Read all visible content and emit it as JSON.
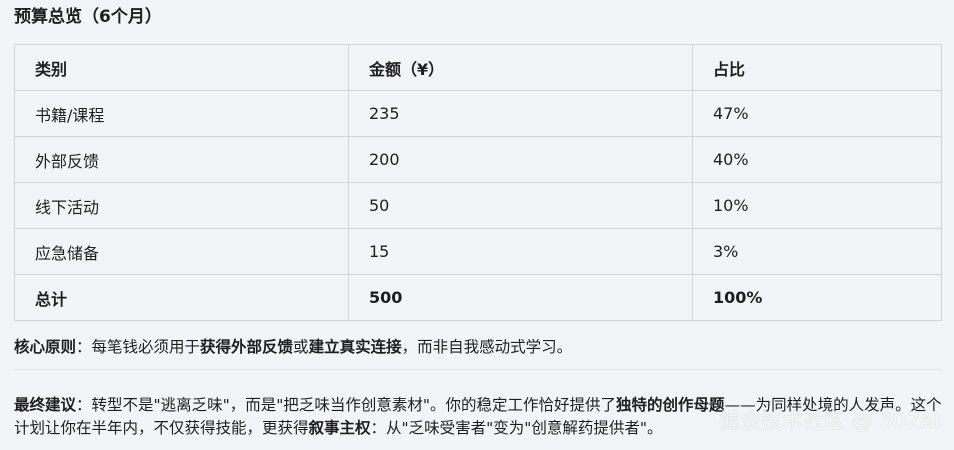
{
  "title": "预算总览（6个月）",
  "table": {
    "headers": [
      "类别",
      "金额（¥）",
      "占比"
    ],
    "rows": [
      [
        "书籍/课程",
        "235",
        "47%"
      ],
      [
        "外部反馈",
        "200",
        "40%"
      ],
      [
        "线下活动",
        "50",
        "10%"
      ],
      [
        "应急储备",
        "15",
        "3%"
      ]
    ],
    "total": [
      "总计",
      "500",
      "100%"
    ]
  },
  "principle": {
    "label": "核心原则",
    "t1": "：每笔钱必须用于",
    "b1": "获得外部反馈",
    "t2": "或",
    "b2": "建立真实连接",
    "t3": "，而非自我感动式学习。"
  },
  "advice": {
    "label": "最终建议",
    "t1": "：转型不是\"逃离乏味\"，而是\"把乏味当作创意素材\"。你的稳定工作恰好提供了",
    "b1": "独特的创作母题",
    "t2": "——为同样处境的人发声。这个计划让你在半年内，不仅获得技能，更获得",
    "b2": "叙事主权",
    "t3": "：从\"乏味受害者\"变为\"创意解药提供者\"。"
  },
  "watermark": "掘金技术社区 @ 302AI"
}
